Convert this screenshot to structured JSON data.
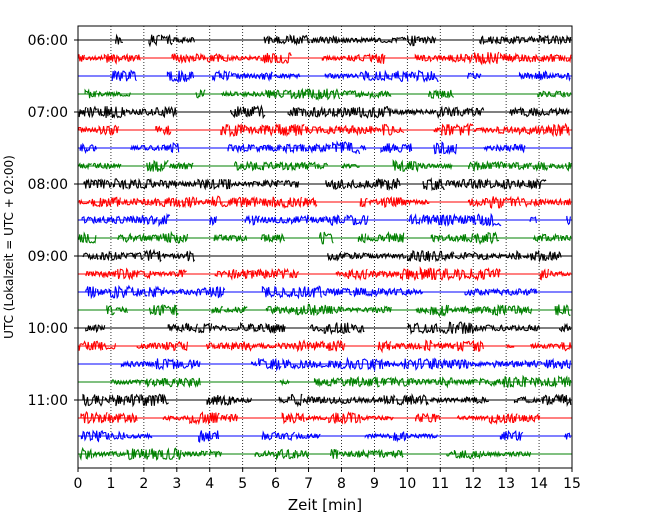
{
  "chart_data": {
    "type": "line",
    "title": "",
    "xlabel": "Zeit  [min]",
    "ylabel": "UTC (Lokalzeit = UTC + 02:00)",
    "xlim": [
      0,
      15
    ],
    "x_ticks": [
      "0",
      "1",
      "2",
      "3",
      "4",
      "5",
      "6",
      "7",
      "8",
      "9",
      "10",
      "11",
      "12",
      "13",
      "14",
      "15"
    ],
    "y_ticks": [
      "06:00",
      "07:00",
      "08:00",
      "09:00",
      "10:00",
      "11:00"
    ],
    "x_grid": true,
    "y_grid": false,
    "trace_interval": "15 min",
    "trace_colors": [
      "#000000",
      "#ff0000",
      "#0000ff",
      "#008000"
    ],
    "traces": [
      {
        "start": "06:00",
        "color": "#000000"
      },
      {
        "start": "06:15",
        "color": "#ff0000"
      },
      {
        "start": "06:30",
        "color": "#0000ff"
      },
      {
        "start": "06:45",
        "color": "#008000"
      },
      {
        "start": "07:00",
        "color": "#000000"
      },
      {
        "start": "07:15",
        "color": "#ff0000"
      },
      {
        "start": "07:30",
        "color": "#0000ff"
      },
      {
        "start": "07:45",
        "color": "#008000"
      },
      {
        "start": "08:00",
        "color": "#000000"
      },
      {
        "start": "08:15",
        "color": "#ff0000"
      },
      {
        "start": "08:30",
        "color": "#0000ff"
      },
      {
        "start": "08:45",
        "color": "#008000"
      },
      {
        "start": "09:00",
        "color": "#000000"
      },
      {
        "start": "09:15",
        "color": "#ff0000"
      },
      {
        "start": "09:30",
        "color": "#0000ff"
      },
      {
        "start": "09:45",
        "color": "#008000"
      },
      {
        "start": "10:00",
        "color": "#000000"
      },
      {
        "start": "10:15",
        "color": "#ff0000"
      },
      {
        "start": "10:30",
        "color": "#0000ff"
      },
      {
        "start": "10:45",
        "color": "#008000"
      },
      {
        "start": "11:00",
        "color": "#000000"
      },
      {
        "start": "11:15",
        "color": "#ff0000"
      },
      {
        "start": "11:30",
        "color": "#0000ff"
      },
      {
        "start": "11:45",
        "color": "#008000"
      }
    ]
  }
}
